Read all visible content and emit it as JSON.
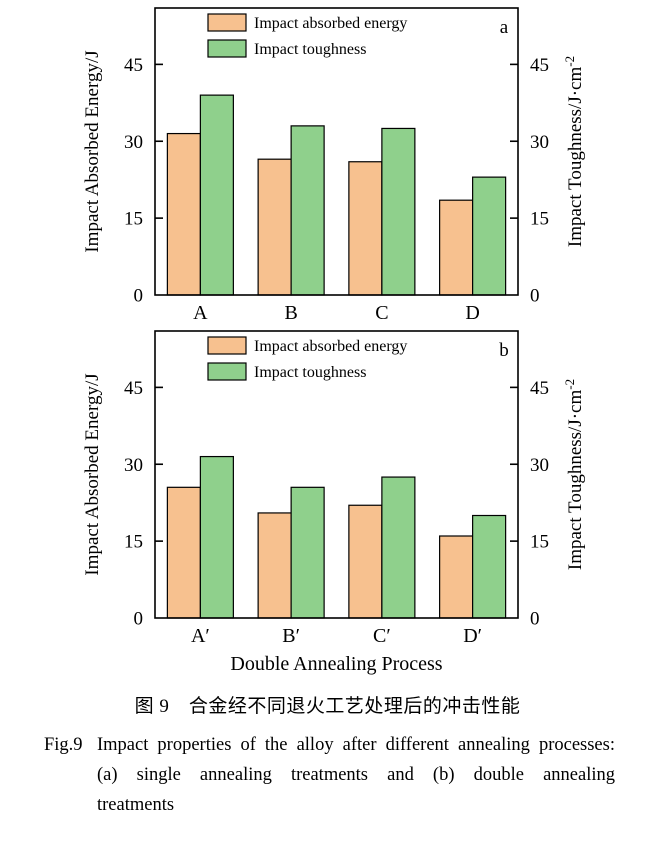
{
  "caption": {
    "zh": "图 9　合金经不同退火工艺处理后的冲击性能",
    "en_label": "Fig.9",
    "en_text": "Impact properties of the alloy after different annealing processes: (a) single annealing treatments and (b) double annealing treatments"
  },
  "colors": {
    "absorbed": "#F7C18F",
    "toughness": "#8FD08C",
    "bar_border": "#000000",
    "frame": "#000000"
  },
  "chart_data": [
    {
      "type": "bar",
      "panel_label": "a",
      "categories": [
        "A",
        "B",
        "C",
        "D"
      ],
      "series": [
        {
          "name": "Impact absorbed energy",
          "color": "#F7C18F",
          "values": [
            31.5,
            26.5,
            26,
            18.5
          ]
        },
        {
          "name": "Impact toughness",
          "color": "#8FD08C",
          "values": [
            39,
            33,
            32.5,
            23
          ]
        }
      ],
      "ylabel_left": "Impact Absorbed Energy/J",
      "ylabel_right": {
        "base": "Impact Toughness/J·cm",
        "sup": "-2"
      },
      "yticks": [
        0,
        15,
        30,
        45
      ],
      "ylim": [
        0,
        56
      ],
      "xlabel": "",
      "legend_position": "top-left",
      "grid": false
    },
    {
      "type": "bar",
      "panel_label": "b",
      "categories": [
        "A′",
        "B′",
        "C′",
        "D′"
      ],
      "series": [
        {
          "name": "Impact absorbed energy",
          "color": "#F7C18F",
          "values": [
            25.5,
            20.5,
            22,
            16
          ]
        },
        {
          "name": "Impact toughness",
          "color": "#8FD08C",
          "values": [
            31.5,
            25.5,
            27.5,
            20
          ]
        }
      ],
      "ylabel_left": "Impact Absorbed Energy/J",
      "ylabel_right": {
        "base": "Impact Toughness/J·cm",
        "sup": "-2"
      },
      "yticks": [
        0,
        15,
        30,
        45
      ],
      "ylim": [
        0,
        56
      ],
      "xlabel": "Double Annealing Process",
      "legend_position": "top-left",
      "grid": false
    }
  ]
}
